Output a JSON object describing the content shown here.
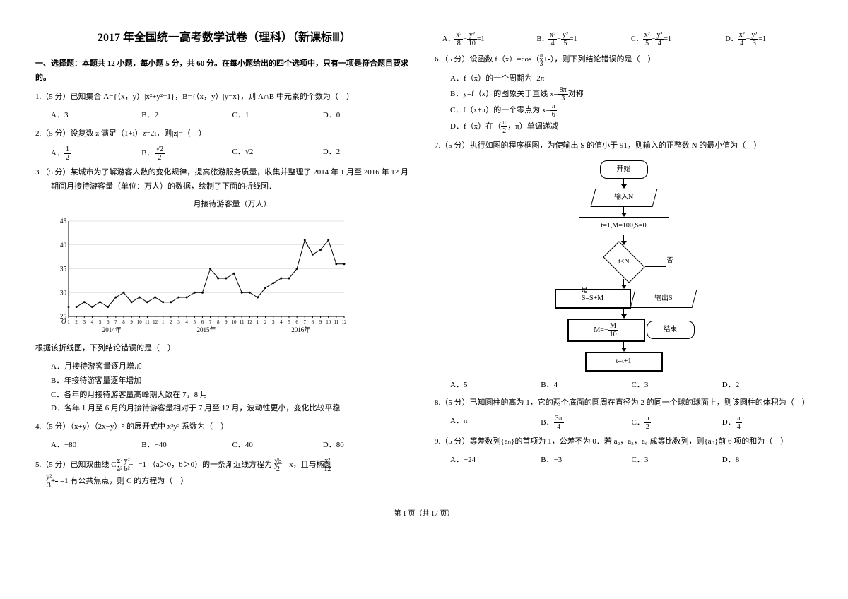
{
  "title": "2017 年全国统一高考数学试卷（理科）（新课标Ⅲ）",
  "section1": "一、选择题：本题共 12 小题，每小题 5 分，共 60 分。在每小题给出的四个选项中，只有一项是符合题目要求的。",
  "q1": {
    "text": "1.（5 分）已知集合 A={（x，y）|x²+y²=1}，B={（x，y）|y=x}，则 A∩B 中元素的个数为（　）",
    "a": "A．3",
    "b": "B．2",
    "c": "C．1",
    "d": "D．0"
  },
  "q2": {
    "text": "2.（5 分）设复数 z 满足（1+i）z=2i，则|z|=（　）",
    "a": "A．",
    "a_frac_n": "1",
    "a_frac_d": "2",
    "b": "B．",
    "b_frac_n": "√2",
    "b_frac_d": "2",
    "c": "C．√2",
    "d": "D．2"
  },
  "q3": {
    "text": "3.（5 分）某城市为了解游客人数的变化规律，提高旅游服务质量，收集并整理了 2014 年 1 月至 2016 年 12 月期间月接待游客量（单位：万人）的数据，绘制了下面的折线图．",
    "chart_title": "月接待游客量（万人）",
    "stem": "根据该折线图，下列结论错误的是（　）",
    "a": "A．月接待游客量逐月增加",
    "b": "B．年接待游客量逐年增加",
    "c": "C．各年的月接待游客量高峰期大致在 7，8 月",
    "d": "D．各年 1 月至 6 月的月接待游客量相对于 7 月至 12 月，波动性更小，变化比较平稳",
    "chart": {
      "type": "line",
      "ylim": [
        0,
        45
      ],
      "ytick_step": 5,
      "ymin_visible": 25,
      "yticks": [
        25,
        30,
        35,
        40,
        45
      ],
      "xlabels": [
        "1",
        "2",
        "3",
        "4",
        "5",
        "6",
        "7",
        "8",
        "9",
        "10",
        "11",
        "12",
        "1",
        "2",
        "3",
        "4",
        "5",
        "6",
        "7",
        "8",
        "9",
        "10",
        "11",
        "12",
        "1",
        "2",
        "3",
        "4",
        "5",
        "6",
        "7",
        "8",
        "9",
        "10",
        "11",
        "12"
      ],
      "year_labels": [
        "2014年",
        "2015年",
        "2016年"
      ],
      "values": [
        27,
        27,
        28,
        27,
        28,
        27,
        29,
        30,
        28,
        29,
        28,
        29,
        28,
        28,
        29,
        29,
        30,
        30,
        35,
        33,
        33,
        34,
        30,
        30,
        29,
        31,
        32,
        33,
        33,
        35,
        41,
        38,
        39,
        41,
        36,
        36
      ],
      "line_color": "#000000",
      "grid_color": "#cccccc",
      "background_color": "#ffffff",
      "line_width": 1
    }
  },
  "q4": {
    "text": "4.（5 分）（x+y）（2x−y）⁵ 的展开式中 x³y³ 系数为（　）",
    "a": "A．−80",
    "b": "B．−40",
    "c": "C．40",
    "d": "D．80"
  },
  "q5": {
    "text_a": "5.（5 分）已知双曲线 C：",
    "text_b": "=1 （a＞0，b＞0）的一条渐近线方程为 y=",
    "text_c": "x，且与椭圆",
    "text_d": "=1 有公共焦点，则 C 的方程为（　）",
    "f1n": "x²",
    "f1d": "a²",
    "f2n": "y²",
    "f2d": "b²",
    "f3n": "√5",
    "f3d": "2",
    "f4n": "x²",
    "f4d": "12",
    "f5n": "y²",
    "f5d": "3",
    "o": {
      "a": "A．",
      "an1": "x²",
      "ad1": "8",
      "an2": "y²",
      "ad2": "10",
      "ae": "=1",
      "b": "B．",
      "bn1": "x²",
      "bd1": "4",
      "bn2": "y²",
      "bd2": "5",
      "be": "=1",
      "c": "C．",
      "cn1": "x²",
      "cd1": "5",
      "cn2": "y²",
      "cd2": "4",
      "ce": "=1",
      "d": "D．",
      "dn1": "x²",
      "dd1": "4",
      "dn2": "y²",
      "dd2": "3",
      "de": "=1"
    }
  },
  "q6": {
    "text_a": "6.（5 分）设函数 f（x）=cos（x+",
    "text_b": "），则下列结论错误的是（　）",
    "fn": "π",
    "fd": "3",
    "a": "A．f（x）的一个周期为−2π",
    "b_a": "B．y=f（x）的图象关于直线 x=",
    "b_fn": "8π",
    "b_fd": "3",
    "b_b": "对称",
    "c_a": "C．f（x+π）的一个零点为 x=",
    "c_fn": "π",
    "c_fd": "6",
    "d_a": "D．f（x）在（",
    "d_fn": "π",
    "d_fd": "2",
    "d_b": "，π）单调递减"
  },
  "q7": {
    "text": "7.（5 分）执行如图的程序框图，为使输出 S 的值小于 91，则输入的正整数 N 的最小值为（　）",
    "flow": {
      "start": "开始",
      "input": "输入N",
      "init": "t=1,M=100,S=0",
      "cond": "t≤N",
      "yes": "是",
      "no": "否",
      "s1": "S=S+M",
      "s2": "M=−",
      "s2n": "M",
      "s2d": "10",
      "s3": "t=t+1",
      "output": "输出S",
      "end": "结束"
    },
    "a": "A．5",
    "b": "B．4",
    "c": "C．3",
    "d": "D．2"
  },
  "q8": {
    "text": "8.（5 分）已知圆柱的高为 1，它的两个底面的圆周在直径为 2 的同一个球的球面上，则该圆柱的体积为（　）",
    "a": "A．π",
    "b": "B．",
    "bn": "3π",
    "bd": "4",
    "c": "C．",
    "cn": "π",
    "cd": "2",
    "d": "D．",
    "dn": "π",
    "dd": "4"
  },
  "q9": {
    "text": "9.（5 分）等差数列{aₙ}的首项为 1，公差不为 0．若 a₂，a₃，a₆ 成等比数列，则{aₙ}前 6 项的和为（　）",
    "a": "A．−24",
    "b": "B．−3",
    "c": "C．3",
    "d": "D．8"
  },
  "footer": "第 1 页（共 17 页）"
}
